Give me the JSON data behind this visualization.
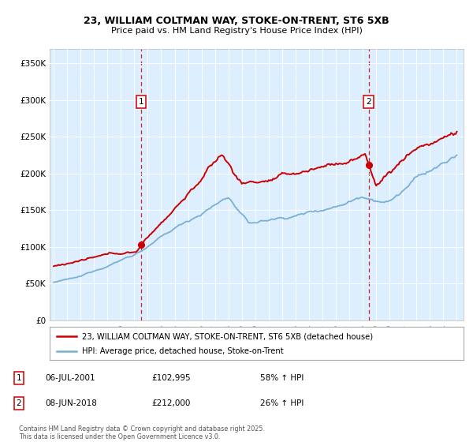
{
  "title_line1": "23, WILLIAM COLTMAN WAY, STOKE-ON-TRENT, ST6 5XB",
  "title_line2": "Price paid vs. HM Land Registry's House Price Index (HPI)",
  "ylim": [
    0,
    370000
  ],
  "xlim_start": 1994.7,
  "xlim_end": 2025.5,
  "sale1_date": 2001.51,
  "sale1_price": 102995,
  "sale1_label": "1",
  "sale2_date": 2018.44,
  "sale2_price": 212000,
  "sale2_label": "2",
  "legend_line1": "23, WILLIAM COLTMAN WAY, STOKE-ON-TRENT, ST6 5XB (detached house)",
  "legend_line2": "HPI: Average price, detached house, Stoke-on-Trent",
  "info1_label": "1",
  "info1_date": "06-JUL-2001",
  "info1_price": "£102,995",
  "info1_hpi": "58% ↑ HPI",
  "info2_label": "2",
  "info2_date": "08-JUN-2018",
  "info2_price": "£212,000",
  "info2_hpi": "26% ↑ HPI",
  "footer": "Contains HM Land Registry data © Crown copyright and database right 2025.\nThis data is licensed under the Open Government Licence v3.0.",
  "red_color": "#cc0000",
  "blue_color": "#7ab0d4",
  "bg_color": "#ddeeff",
  "grid_color": "#ffffff"
}
